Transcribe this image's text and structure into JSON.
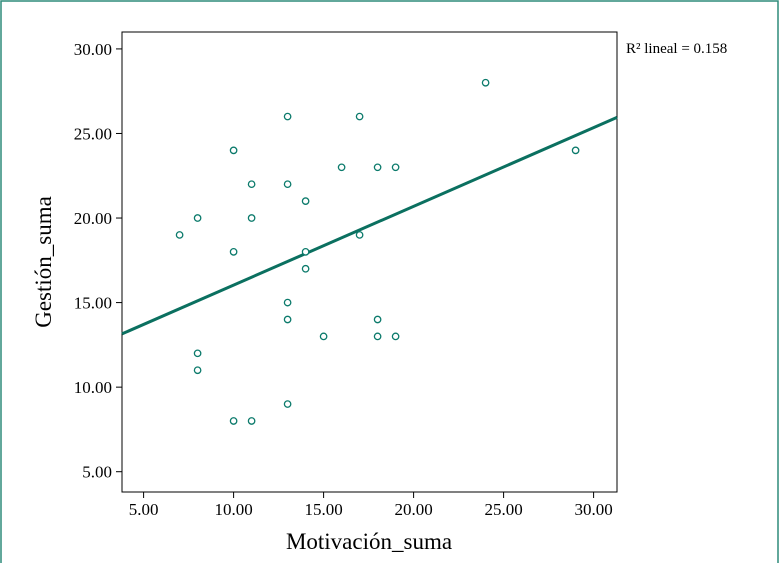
{
  "chart_data": {
    "type": "scatter",
    "xlabel": "Motivación_suma",
    "ylabel": "Gestión_suma",
    "xlim": [
      3.8,
      31.3
    ],
    "ylim": [
      3.8,
      31.0
    ],
    "x_ticks": [
      "5.00",
      "10.00",
      "15.00",
      "20.00",
      "25.00",
      "30.00"
    ],
    "y_ticks": [
      "5.00",
      "10.00",
      "15.00",
      "20.00",
      "25.00",
      "30.00"
    ],
    "points": [
      {
        "x": 7,
        "y": 19
      },
      {
        "x": 8,
        "y": 20
      },
      {
        "x": 8,
        "y": 12
      },
      {
        "x": 8,
        "y": 11
      },
      {
        "x": 10,
        "y": 24
      },
      {
        "x": 10,
        "y": 18
      },
      {
        "x": 10,
        "y": 8
      },
      {
        "x": 11,
        "y": 22
      },
      {
        "x": 11,
        "y": 20
      },
      {
        "x": 11,
        "y": 8
      },
      {
        "x": 13,
        "y": 26
      },
      {
        "x": 13,
        "y": 22
      },
      {
        "x": 13,
        "y": 15
      },
      {
        "x": 13,
        "y": 14
      },
      {
        "x": 13,
        "y": 9
      },
      {
        "x": 14,
        "y": 21
      },
      {
        "x": 14,
        "y": 18
      },
      {
        "x": 14,
        "y": 17
      },
      {
        "x": 15,
        "y": 13
      },
      {
        "x": 16,
        "y": 23
      },
      {
        "x": 17,
        "y": 26
      },
      {
        "x": 17,
        "y": 19
      },
      {
        "x": 18,
        "y": 23
      },
      {
        "x": 18,
        "y": 14
      },
      {
        "x": 18,
        "y": 13
      },
      {
        "x": 19,
        "y": 23
      },
      {
        "x": 19,
        "y": 13
      },
      {
        "x": 24,
        "y": 28
      },
      {
        "x": 29,
        "y": 24
      }
    ],
    "fit_line": {
      "x": [
        3.8,
        31.3
      ],
      "y": [
        13.15,
        25.95
      ]
    },
    "annotation": "R² lineal = 0.158",
    "grid": false,
    "colors": {
      "points": "#0b7a6b",
      "line": "#0b7060",
      "frame": "#2e8b7a",
      "axis": "#000000"
    }
  }
}
